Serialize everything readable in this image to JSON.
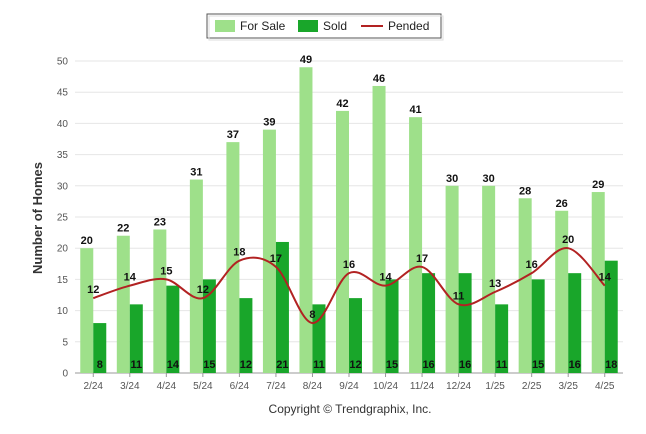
{
  "chart_data": {
    "type": "bar",
    "ylabel": "Number of Homes",
    "ylim": [
      0,
      50
    ],
    "yticks": [
      0,
      5,
      10,
      15,
      20,
      25,
      30,
      35,
      40,
      45,
      50
    ],
    "grid": true,
    "legend_position": "top-center",
    "categories": [
      "2/24",
      "3/24",
      "4/24",
      "5/24",
      "6/24",
      "7/24",
      "8/24",
      "9/24",
      "10/24",
      "11/24",
      "12/24",
      "1/25",
      "2/25",
      "3/25",
      "4/25"
    ],
    "series": [
      {
        "name": "For Sale",
        "kind": "bar",
        "color": "#9ee08a",
        "values": [
          20,
          22,
          23,
          31,
          37,
          39,
          49,
          42,
          46,
          41,
          30,
          30,
          28,
          26,
          29
        ]
      },
      {
        "name": "Sold",
        "kind": "bar",
        "color": "#19a62a",
        "values": [
          8,
          11,
          14,
          15,
          12,
          21,
          11,
          12,
          15,
          16,
          16,
          11,
          15,
          16,
          18
        ]
      },
      {
        "name": "Pended",
        "kind": "line",
        "color": "#b22222",
        "values": [
          12,
          14,
          15,
          12,
          18,
          17,
          8,
          16,
          14,
          17,
          11,
          13,
          16,
          20,
          14
        ]
      }
    ]
  },
  "footer": {
    "copyright": "Copyright © Trendgraphix, Inc."
  }
}
